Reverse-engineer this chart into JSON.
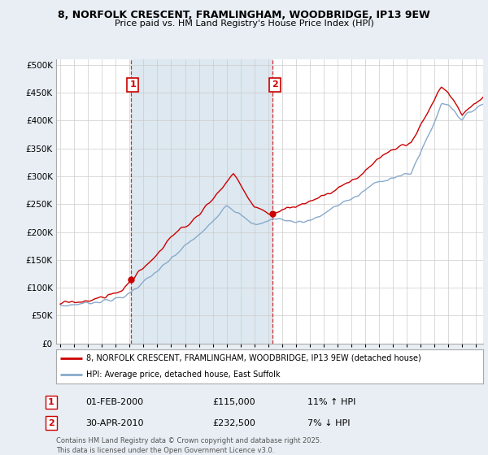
{
  "title_line1": "8, NORFOLK CRESCENT, FRAMLINGHAM, WOODBRIDGE, IP13 9EW",
  "title_line2": "Price paid vs. HM Land Registry's House Price Index (HPI)",
  "ytick_vals": [
    0,
    50000,
    100000,
    150000,
    200000,
    250000,
    300000,
    350000,
    400000,
    450000,
    500000
  ],
  "ylim": [
    0,
    510000
  ],
  "xlim_start": 1994.7,
  "xlim_end": 2025.5,
  "legend_line1": "8, NORFOLK CRESCENT, FRAMLINGHAM, WOODBRIDGE, IP13 9EW (detached house)",
  "legend_line2": "HPI: Average price, detached house, East Suffolk",
  "sale1_label": "1",
  "sale1_date": "01-FEB-2000",
  "sale1_price": "£115,000",
  "sale1_hpi": "11% ↑ HPI",
  "sale2_label": "2",
  "sale2_date": "30-APR-2010",
  "sale2_price": "£232,500",
  "sale2_hpi": "7% ↓ HPI",
  "footer": "Contains HM Land Registry data © Crown copyright and database right 2025.\nThis data is licensed under the Open Government Licence v3.0.",
  "color_red": "#cc0000",
  "color_blue": "#88aacc",
  "color_shade": "#dde8f0",
  "color_grid": "#cccccc",
  "color_bg": "#e8eef4",
  "color_plot_bg": "#ffffff",
  "marker1_x": 2000.08,
  "marker2_x": 2010.33,
  "marker1_y": 115000,
  "marker2_y": 232500,
  "xtick_years": [
    1995,
    1996,
    1997,
    1998,
    1999,
    2000,
    2001,
    2002,
    2003,
    2004,
    2005,
    2006,
    2007,
    2008,
    2009,
    2010,
    2011,
    2012,
    2013,
    2014,
    2015,
    2016,
    2017,
    2018,
    2019,
    2020,
    2021,
    2022,
    2023,
    2024,
    2025
  ]
}
